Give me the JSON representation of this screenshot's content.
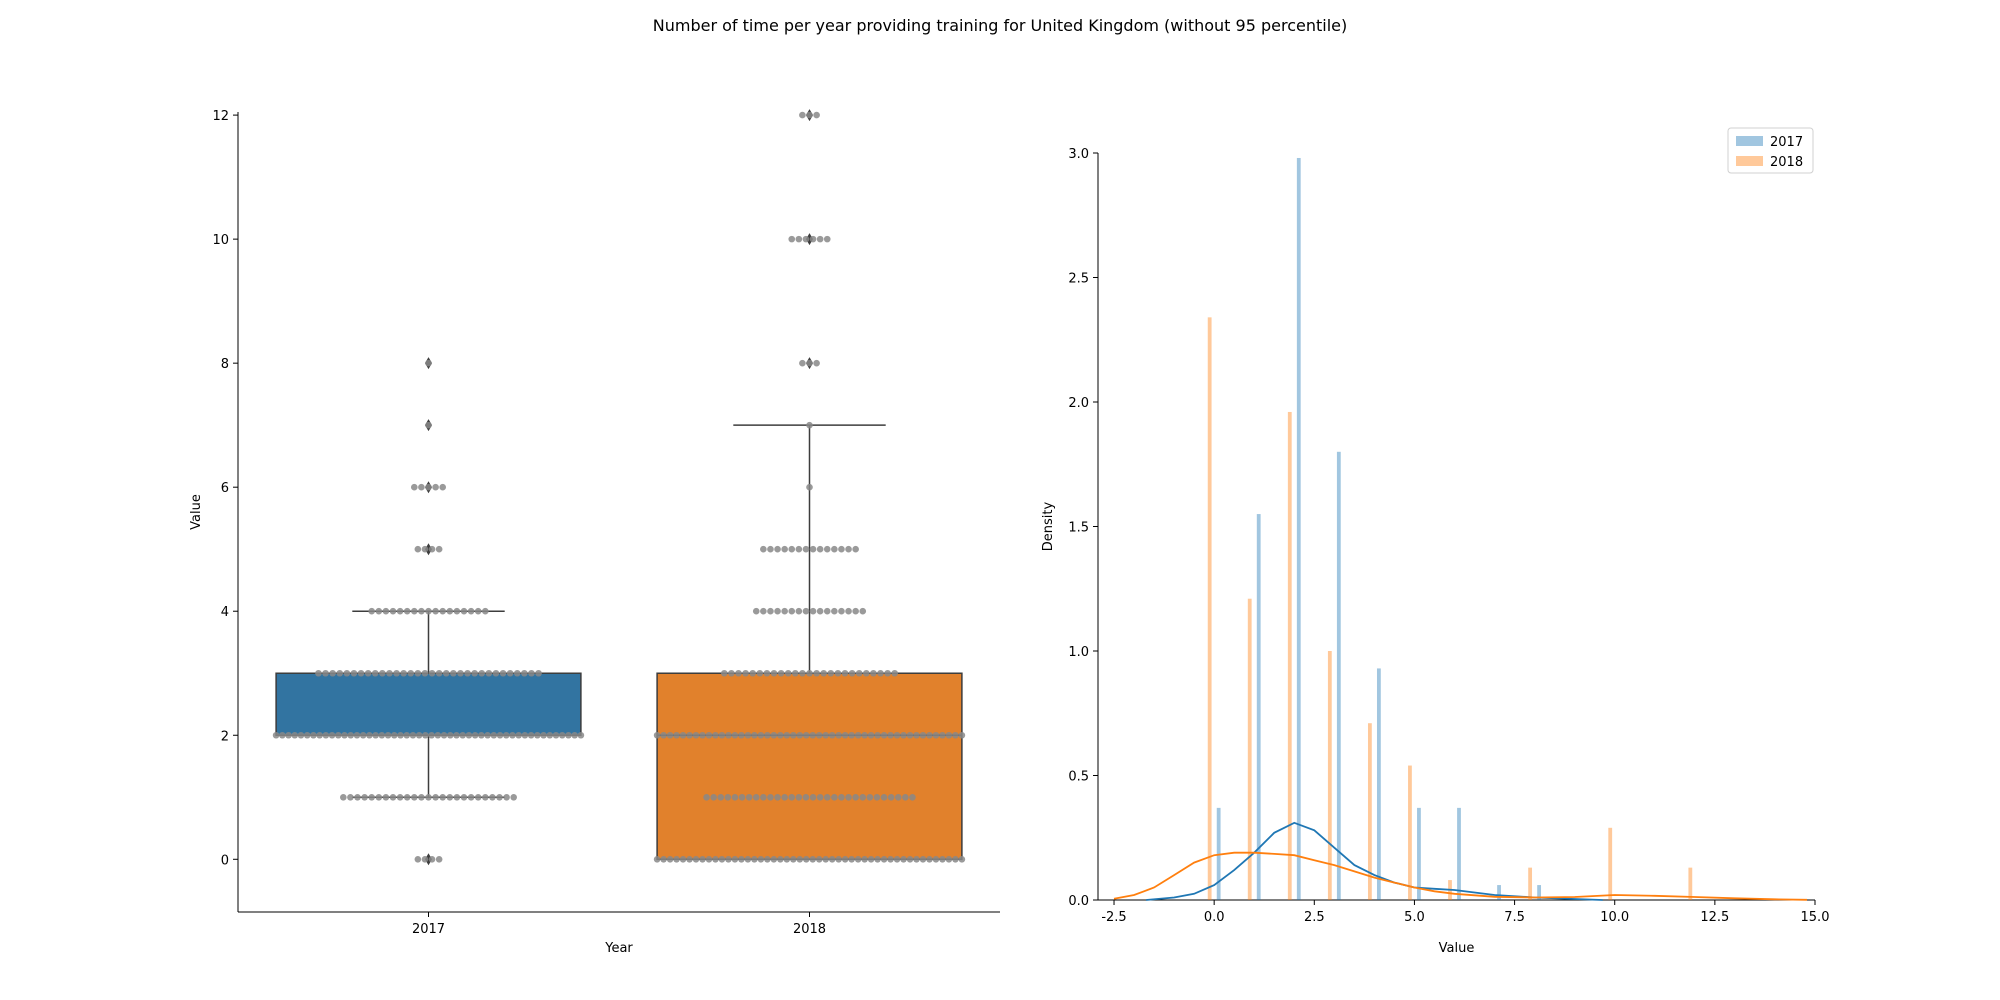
{
  "figure_title": "Number of time per year providing training for United Kingdom (without 95 percentile)",
  "colors": {
    "2017": "#1f77b4",
    "2018": "#ff7f0e",
    "box_2017": "#3274a1",
    "box_2018": "#e1812c",
    "swarm": "#888888",
    "axis": "#000000"
  },
  "chart_data": [
    {
      "type": "box",
      "title": "",
      "xlabel": "Year",
      "ylabel": "Value",
      "ylim": [
        -0.85,
        12.05
      ],
      "yticks": [
        0,
        2,
        4,
        6,
        8,
        10,
        12
      ],
      "categories": [
        "2017",
        "2018"
      ],
      "grid": false,
      "boxes": [
        {
          "name": "2017",
          "q1": 2,
          "median": 2,
          "q3": 3,
          "whisker_low": 1,
          "whisker_high": 4,
          "outliers": [
            0,
            5,
            6,
            7,
            8
          ]
        },
        {
          "name": "2018",
          "q1": 0,
          "median": 2,
          "q3": 3,
          "whisker_low": 0,
          "whisker_high": 7,
          "outliers": [
            8,
            10,
            12
          ]
        }
      ],
      "swarm": [
        {
          "name": "2017",
          "counts": [
            {
              "value": 0,
              "count": 4
            },
            {
              "value": 1,
              "count": 25
            },
            {
              "value": 2,
              "count": 50
            },
            {
              "value": 3,
              "count": 32
            },
            {
              "value": 4,
              "count": 17
            },
            {
              "value": 5,
              "count": 4
            },
            {
              "value": 6,
              "count": 5
            },
            {
              "value": 7,
              "count": 1
            },
            {
              "value": 8,
              "count": 1
            }
          ]
        },
        {
          "name": "2018",
          "counts": [
            {
              "value": 0,
              "count": 48
            },
            {
              "value": 1,
              "count": 30
            },
            {
              "value": 2,
              "count": 48
            },
            {
              "value": 3,
              "count": 25
            },
            {
              "value": 4,
              "count": 16
            },
            {
              "value": 5,
              "count": 14
            },
            {
              "value": 6,
              "count": 1
            },
            {
              "value": 7,
              "count": 1
            },
            {
              "value": 8,
              "count": 3
            },
            {
              "value": 10,
              "count": 6
            },
            {
              "value": 12,
              "count": 3
            }
          ]
        }
      ]
    },
    {
      "type": "histogram",
      "title": "",
      "xlabel": "Value",
      "ylabel": "Density",
      "xlim": [
        -2.9,
        15.0
      ],
      "ylim": [
        0,
        3.0
      ],
      "xticks": [
        -2.5,
        0.0,
        2.5,
        5.0,
        7.5,
        10.0,
        12.5,
        15.0
      ],
      "yticks": [
        0.0,
        0.5,
        1.0,
        1.5,
        2.0,
        2.5,
        3.0
      ],
      "legend_position": "top-right",
      "grid": false,
      "series": [
        {
          "name": "2017",
          "bars": [
            {
              "x": 0,
              "y": 0.37
            },
            {
              "x": 1,
              "y": 1.55
            },
            {
              "x": 2,
              "y": 2.98
            },
            {
              "x": 3,
              "y": 1.8
            },
            {
              "x": 4,
              "y": 0.93
            },
            {
              "x": 5,
              "y": 0.37
            },
            {
              "x": 6,
              "y": 0.37
            },
            {
              "x": 7,
              "y": 0.06
            },
            {
              "x": 8,
              "y": 0.06
            }
          ],
          "kde": [
            {
              "x": -1.7,
              "y": 0.0
            },
            {
              "x": -1.0,
              "y": 0.01
            },
            {
              "x": -0.5,
              "y": 0.025
            },
            {
              "x": 0.0,
              "y": 0.06
            },
            {
              "x": 0.5,
              "y": 0.12
            },
            {
              "x": 1.0,
              "y": 0.19
            },
            {
              "x": 1.5,
              "y": 0.27
            },
            {
              "x": 2.0,
              "y": 0.31
            },
            {
              "x": 2.5,
              "y": 0.28
            },
            {
              "x": 3.0,
              "y": 0.21
            },
            {
              "x": 3.5,
              "y": 0.14
            },
            {
              "x": 4.0,
              "y": 0.1
            },
            {
              "x": 4.5,
              "y": 0.07
            },
            {
              "x": 5.0,
              "y": 0.05
            },
            {
              "x": 5.5,
              "y": 0.045
            },
            {
              "x": 6.0,
              "y": 0.04
            },
            {
              "x": 6.5,
              "y": 0.03
            },
            {
              "x": 7.0,
              "y": 0.02
            },
            {
              "x": 8.0,
              "y": 0.01
            },
            {
              "x": 9.0,
              "y": 0.004
            },
            {
              "x": 9.7,
              "y": 0.0
            }
          ]
        },
        {
          "name": "2018",
          "bars": [
            {
              "x": 0,
              "y": 2.34
            },
            {
              "x": 1,
              "y": 1.21
            },
            {
              "x": 2,
              "y": 1.96
            },
            {
              "x": 3,
              "y": 1.0
            },
            {
              "x": 4,
              "y": 0.71
            },
            {
              "x": 5,
              "y": 0.54
            },
            {
              "x": 6,
              "y": 0.08
            },
            {
              "x": 8,
              "y": 0.13
            },
            {
              "x": 10,
              "y": 0.29
            },
            {
              "x": 12,
              "y": 0.13
            }
          ],
          "kde": [
            {
              "x": -2.5,
              "y": 0.005
            },
            {
              "x": -2.0,
              "y": 0.02
            },
            {
              "x": -1.5,
              "y": 0.05
            },
            {
              "x": -1.0,
              "y": 0.1
            },
            {
              "x": -0.5,
              "y": 0.15
            },
            {
              "x": 0.0,
              "y": 0.18
            },
            {
              "x": 0.5,
              "y": 0.19
            },
            {
              "x": 1.0,
              "y": 0.19
            },
            {
              "x": 1.5,
              "y": 0.185
            },
            {
              "x": 2.0,
              "y": 0.18
            },
            {
              "x": 2.5,
              "y": 0.16
            },
            {
              "x": 3.0,
              "y": 0.14
            },
            {
              "x": 3.5,
              "y": 0.115
            },
            {
              "x": 4.0,
              "y": 0.09
            },
            {
              "x": 4.5,
              "y": 0.07
            },
            {
              "x": 5.0,
              "y": 0.05
            },
            {
              "x": 5.5,
              "y": 0.035
            },
            {
              "x": 6.0,
              "y": 0.025
            },
            {
              "x": 7.0,
              "y": 0.013
            },
            {
              "x": 8.0,
              "y": 0.01
            },
            {
              "x": 9.0,
              "y": 0.012
            },
            {
              "x": 10.0,
              "y": 0.02
            },
            {
              "x": 11.0,
              "y": 0.017
            },
            {
              "x": 12.0,
              "y": 0.012
            },
            {
              "x": 13.0,
              "y": 0.007
            },
            {
              "x": 14.0,
              "y": 0.003
            },
            {
              "x": 14.8,
              "y": 0.001
            }
          ]
        }
      ]
    }
  ]
}
